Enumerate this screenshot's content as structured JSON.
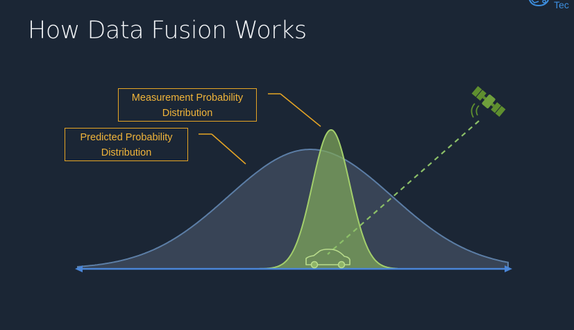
{
  "slide": {
    "title": "How Data Fusion Works",
    "logo_text": "Tec"
  },
  "callouts": {
    "measurement": {
      "line1": "Measurement Probability",
      "line2": "Distribution"
    },
    "predicted": {
      "line1": "Predicted Probability",
      "line2": "Distribution"
    }
  },
  "icons": [
    "satellite-icon",
    "car-icon",
    "logo-icon"
  ],
  "colors": {
    "background": "#1b2635",
    "title": "#f2f4f7",
    "callout": "#f0b43a",
    "axis": "#4a86d8",
    "predicted_fill": "#3a4658",
    "predicted_stroke": "#5c7ea6",
    "measurement_fill": "#7fa65a",
    "measurement_stroke": "#9fc96a",
    "satellite": "#5f8f2f",
    "signal_line": "#8cc068",
    "logo": "#3d8fe0"
  }
}
